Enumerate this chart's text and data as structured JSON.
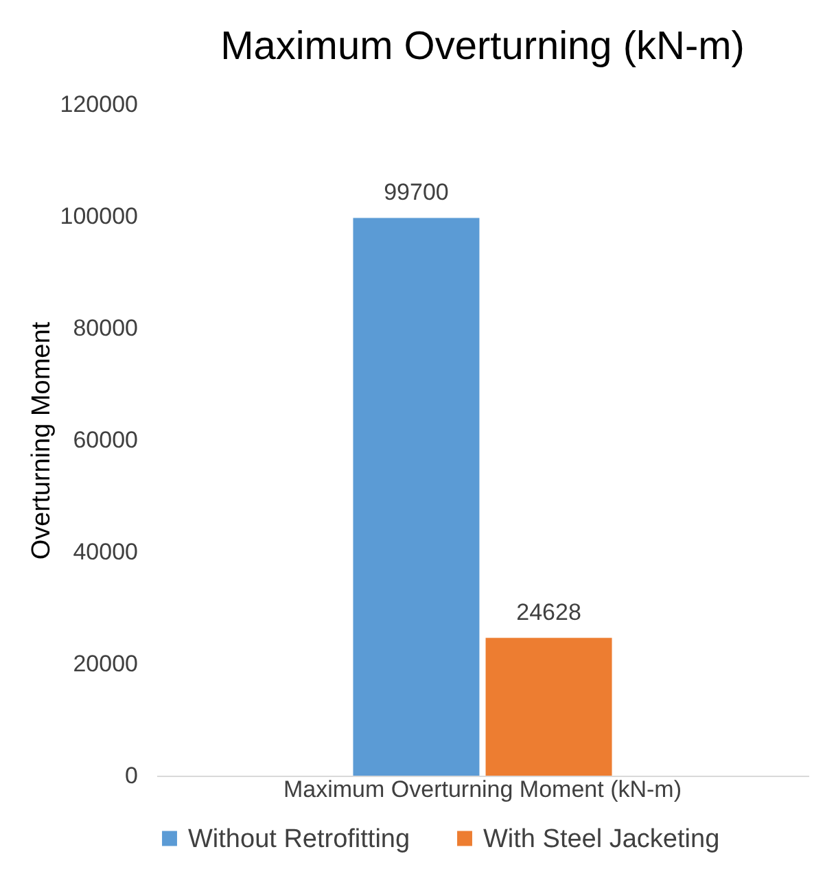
{
  "chart_data": {
    "type": "bar",
    "title": "Maximum Overturning (kN-m)",
    "ylabel": "Overturning Moment",
    "categories": [
      "Maximum Overturning Moment (kN-m)"
    ],
    "series": [
      {
        "name": "Without Retrofitting",
        "color": "#5b9bd5",
        "values": [
          99700
        ]
      },
      {
        "name": "With Steel Jacketing",
        "color": "#ed7d31",
        "values": [
          24628
        ]
      }
    ],
    "ylim": [
      0,
      120000
    ],
    "yticks": [
      0,
      20000,
      40000,
      60000,
      80000,
      100000,
      120000
    ],
    "grid": false,
    "legend": "bottom",
    "data_labels": true
  }
}
